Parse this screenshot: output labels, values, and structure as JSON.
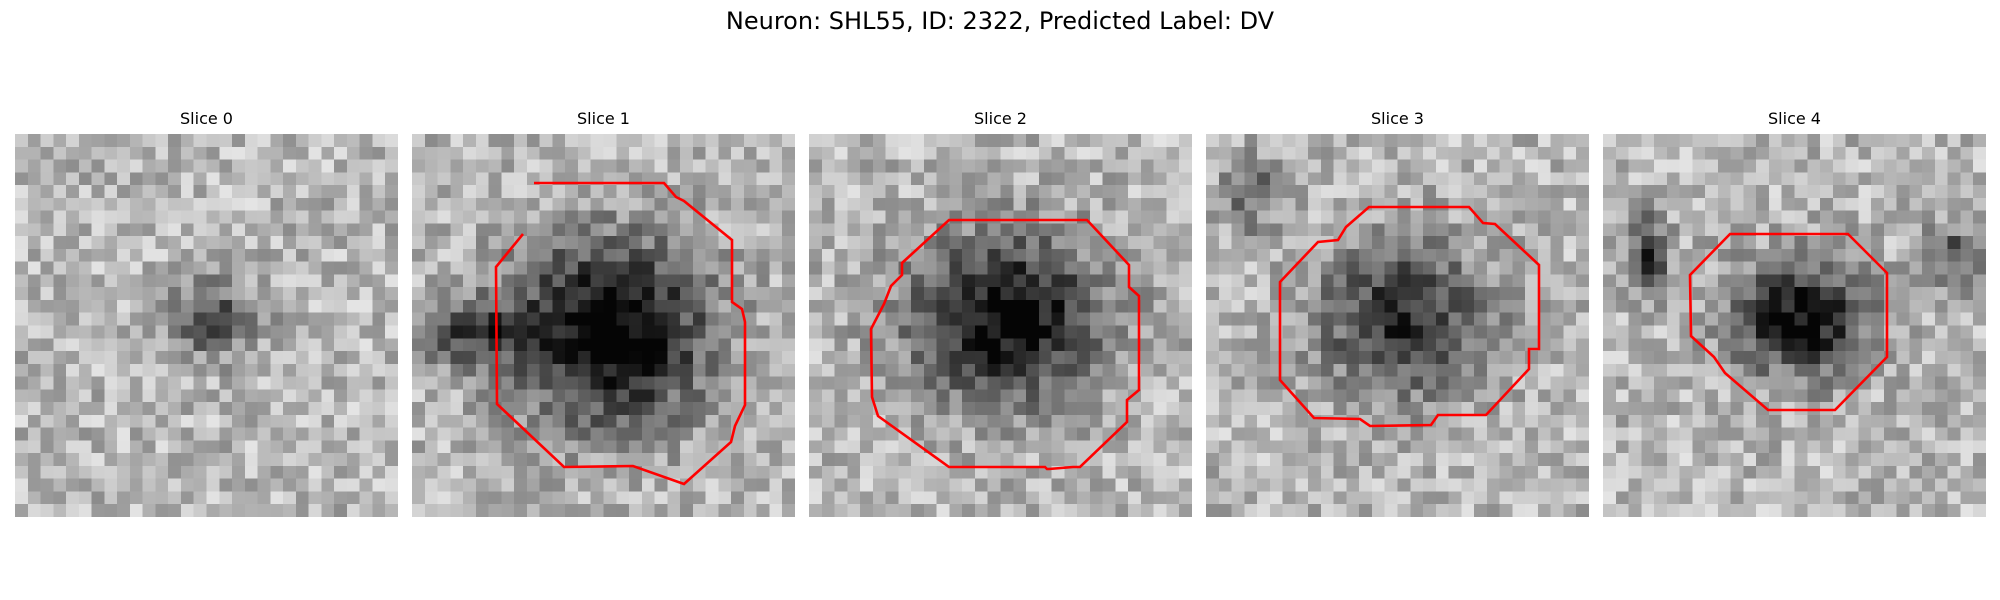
{
  "figure": {
    "title": "Neuron: SHL55, ID: 2322, Predicted Label: DV",
    "contour_color": "#ff0000",
    "panels": [
      {
        "title": "Slice 0",
        "has_contour": false
      },
      {
        "title": "Slice 1",
        "has_contour": true
      },
      {
        "title": "Slice 2",
        "has_contour": true
      },
      {
        "title": "Slice 3",
        "has_contour": true
      },
      {
        "title": "Slice 4",
        "has_contour": true
      }
    ]
  }
}
